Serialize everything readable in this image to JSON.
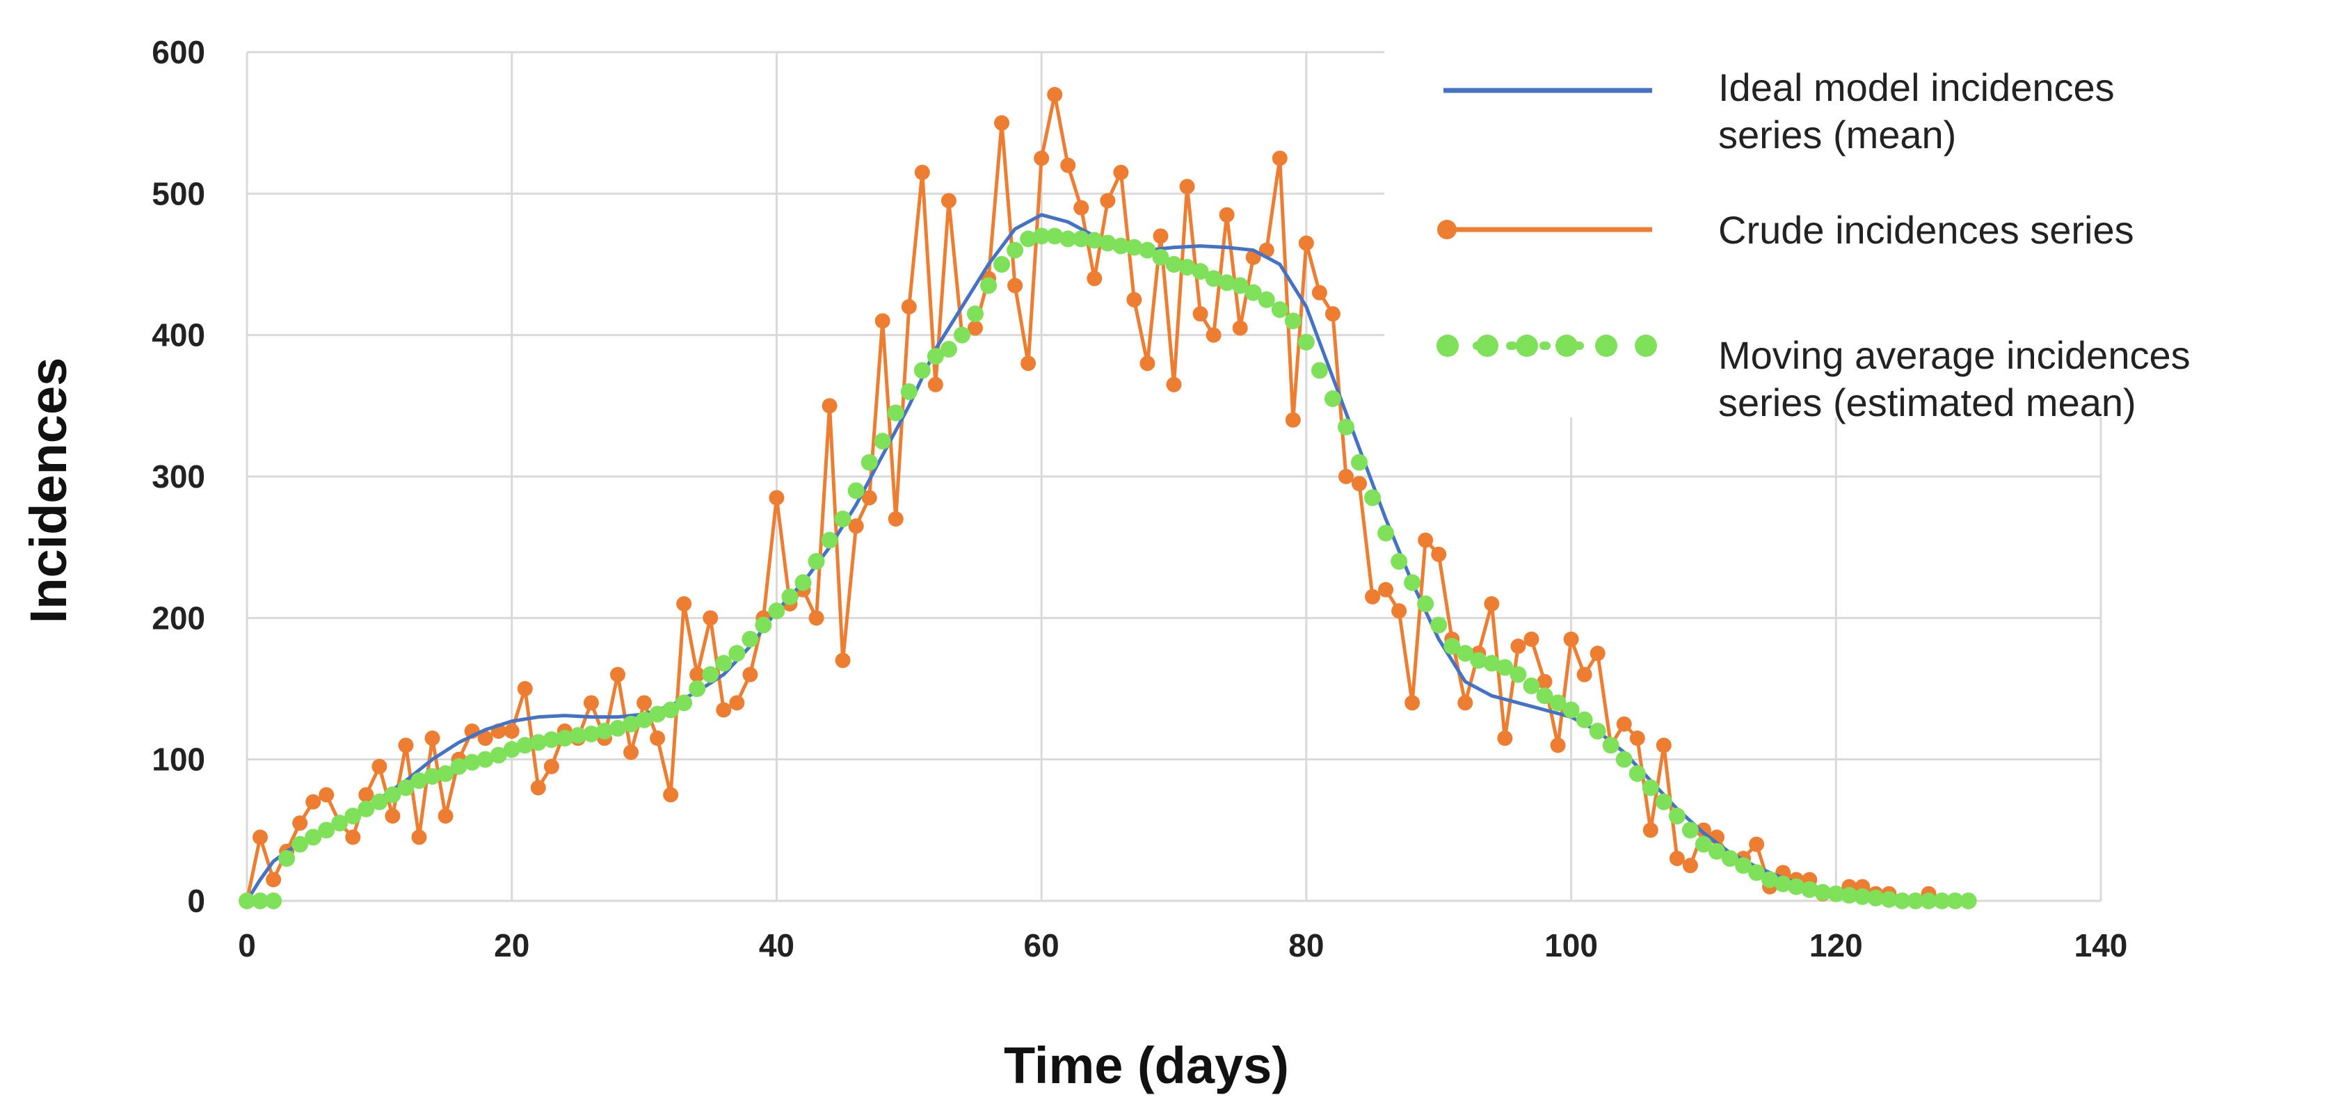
{
  "chart_data": {
    "type": "line",
    "title": "",
    "xlabel": "Time (days)",
    "ylabel": "Incidences",
    "xlim": [
      0,
      140
    ],
    "ylim": [
      0,
      600
    ],
    "x_ticks": [
      0,
      20,
      40,
      60,
      80,
      100,
      120,
      140
    ],
    "y_ticks": [
      0,
      100,
      200,
      300,
      400,
      500,
      600
    ],
    "grid": true,
    "legend_position": "top-right",
    "series": [
      {
        "name": "Ideal model incidences series (mean)",
        "legend_lines": [
          "Ideal model incidences",
          "series (mean)"
        ],
        "color": "#4472C4",
        "style": "line",
        "x": [
          0,
          1,
          2,
          3,
          5,
          8,
          10,
          12,
          14,
          16,
          18,
          20,
          22,
          24,
          26,
          28,
          30,
          32,
          34,
          36,
          38,
          40,
          42,
          44,
          46,
          48,
          50,
          52,
          54,
          56,
          58,
          60,
          62,
          64,
          66,
          68,
          70,
          72,
          74,
          76,
          78,
          80,
          82,
          84,
          86,
          88,
          90,
          92,
          94,
          96,
          98,
          100,
          102,
          104,
          106,
          108,
          110,
          112,
          114,
          116,
          118,
          120,
          122,
          124,
          126,
          128,
          130
        ],
        "y": [
          0,
          15,
          28,
          35,
          45,
          60,
          72,
          85,
          100,
          112,
          121,
          127,
          130,
          131,
          130,
          130,
          132,
          138,
          148,
          160,
          180,
          205,
          225,
          250,
          280,
          315,
          350,
          390,
          420,
          450,
          475,
          485,
          480,
          470,
          465,
          460,
          462,
          463,
          462,
          460,
          450,
          420,
          370,
          320,
          270,
          225,
          185,
          155,
          145,
          140,
          135,
          130,
          120,
          105,
          85,
          65,
          48,
          34,
          24,
          16,
          10,
          6,
          4,
          2,
          1,
          0,
          0
        ]
      },
      {
        "name": "Crude incidences series",
        "legend_lines": [
          "Crude incidences series"
        ],
        "color": "#ED7D31",
        "style": "line-markers",
        "x": [
          0,
          1,
          2,
          3,
          4,
          5,
          6,
          7,
          8,
          9,
          10,
          11,
          12,
          13,
          14,
          15,
          16,
          17,
          18,
          19,
          20,
          21,
          22,
          23,
          24,
          25,
          26,
          27,
          28,
          29,
          30,
          31,
          32,
          33,
          34,
          35,
          36,
          37,
          38,
          39,
          40,
          41,
          42,
          43,
          44,
          45,
          46,
          47,
          48,
          49,
          50,
          51,
          52,
          53,
          54,
          55,
          56,
          57,
          58,
          59,
          60,
          61,
          62,
          63,
          64,
          65,
          66,
          67,
          68,
          69,
          70,
          71,
          72,
          73,
          74,
          75,
          76,
          77,
          78,
          79,
          80,
          81,
          82,
          83,
          84,
          85,
          86,
          87,
          88,
          89,
          90,
          91,
          92,
          93,
          94,
          95,
          96,
          97,
          98,
          99,
          100,
          101,
          102,
          103,
          104,
          105,
          106,
          107,
          108,
          109,
          110,
          111,
          112,
          113,
          114,
          115,
          116,
          117,
          118,
          119,
          120,
          121,
          122,
          123,
          124,
          125,
          126,
          127,
          128,
          129,
          130
        ],
        "y": [
          0,
          45,
          15,
          35,
          55,
          70,
          75,
          55,
          45,
          75,
          95,
          60,
          110,
          45,
          115,
          60,
          100,
          120,
          115,
          120,
          120,
          150,
          80,
          95,
          120,
          115,
          140,
          115,
          160,
          105,
          140,
          115,
          75,
          210,
          160,
          200,
          135,
          140,
          160,
          200,
          285,
          210,
          220,
          200,
          350,
          170,
          265,
          285,
          410,
          270,
          420,
          515,
          365,
          495,
          400,
          405,
          440,
          550,
          435,
          380,
          525,
          570,
          520,
          490,
          440,
          495,
          515,
          425,
          380,
          470,
          365,
          505,
          415,
          400,
          485,
          405,
          455,
          460,
          525,
          340,
          465,
          430,
          415,
          300,
          295,
          215,
          220,
          205,
          140,
          255,
          245,
          185,
          140,
          175,
          210,
          115,
          180,
          185,
          155,
          110,
          185,
          160,
          175,
          110,
          125,
          115,
          50,
          110,
          30,
          25,
          50,
          45,
          30,
          30,
          40,
          10,
          20,
          15,
          15,
          5,
          5,
          10,
          10,
          5,
          5,
          0,
          0,
          5,
          0,
          0,
          0
        ]
      },
      {
        "name": "Moving average incidences series (estimated mean)",
        "legend_lines": [
          "Moving average incidences",
          "series (estimated mean)"
        ],
        "color": "#7FE05A",
        "style": "dotted-markers",
        "x": [
          0,
          1,
          2,
          3,
          4,
          5,
          6,
          7,
          8,
          9,
          10,
          11,
          12,
          13,
          14,
          15,
          16,
          17,
          18,
          19,
          20,
          21,
          22,
          23,
          24,
          25,
          26,
          27,
          28,
          29,
          30,
          31,
          32,
          33,
          34,
          35,
          36,
          37,
          38,
          39,
          40,
          41,
          42,
          43,
          44,
          45,
          46,
          47,
          48,
          49,
          50,
          51,
          52,
          53,
          54,
          55,
          56,
          57,
          58,
          59,
          60,
          61,
          62,
          63,
          64,
          65,
          66,
          67,
          68,
          69,
          70,
          71,
          72,
          73,
          74,
          75,
          76,
          77,
          78,
          79,
          80,
          81,
          82,
          83,
          84,
          85,
          86,
          87,
          88,
          89,
          90,
          91,
          92,
          93,
          94,
          95,
          96,
          97,
          98,
          99,
          100,
          101,
          102,
          103,
          104,
          105,
          106,
          107,
          108,
          109,
          110,
          111,
          112,
          113,
          114,
          115,
          116,
          117,
          118,
          119,
          120,
          121,
          122,
          123,
          124,
          125,
          126,
          127,
          128,
          129,
          130
        ],
        "y": [
          0,
          0,
          0,
          30,
          40,
          45,
          50,
          55,
          60,
          65,
          70,
          75,
          80,
          85,
          88,
          90,
          95,
          98,
          100,
          103,
          107,
          110,
          112,
          114,
          115,
          117,
          118,
          120,
          122,
          125,
          128,
          132,
          135,
          140,
          150,
          160,
          168,
          175,
          185,
          195,
          205,
          215,
          225,
          240,
          255,
          270,
          290,
          310,
          325,
          345,
          360,
          375,
          385,
          390,
          400,
          415,
          435,
          450,
          460,
          468,
          470,
          470,
          468,
          468,
          467,
          465,
          463,
          462,
          460,
          455,
          450,
          448,
          445,
          440,
          437,
          435,
          430,
          425,
          418,
          410,
          395,
          375,
          355,
          335,
          310,
          285,
          260,
          240,
          225,
          210,
          195,
          180,
          175,
          170,
          168,
          165,
          160,
          152,
          145,
          140,
          135,
          128,
          120,
          110,
          100,
          90,
          80,
          70,
          60,
          50,
          40,
          35,
          30,
          25,
          20,
          15,
          12,
          10,
          8,
          6,
          5,
          4,
          3,
          2,
          1,
          0,
          0,
          0,
          0,
          0,
          0
        ]
      }
    ]
  }
}
